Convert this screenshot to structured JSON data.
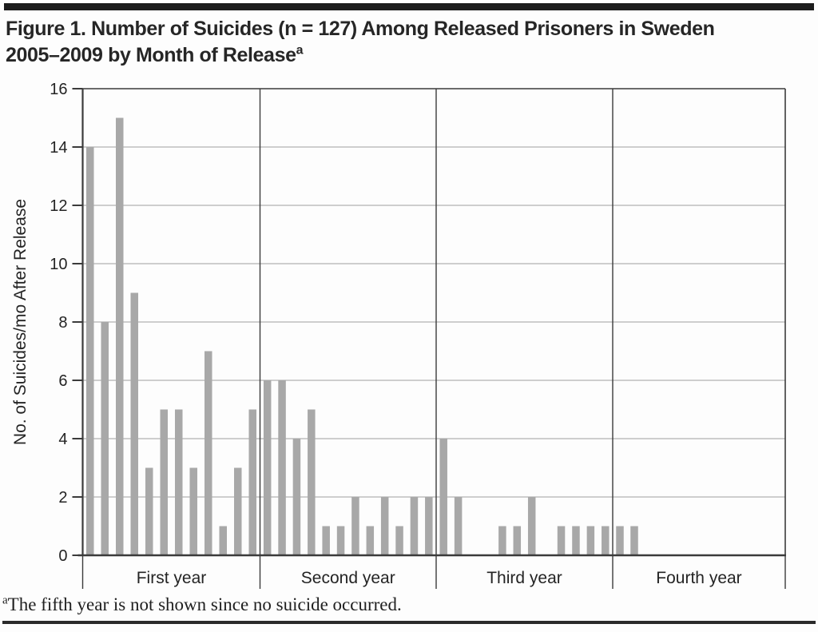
{
  "figure": {
    "title_line1": "Figure 1. Number of Suicides (n = 127) Among Released Prisoners in Sweden",
    "title_line2": "2005–2009 by Month of Release",
    "title_superscript": "a",
    "footnote_superscript": "a",
    "footnote_text": "The fifth year is not shown since no suicide occurred."
  },
  "chart_data": {
    "type": "bar",
    "title": "Figure 1. Number of Suicides (n = 127) Among Released Prisoners in Sweden 2005–2009 by Month of Release",
    "total_n": 127,
    "xlabel": "",
    "ylabel": "No. of Suicides/mo After Release",
    "ylim": [
      0,
      16
    ],
    "ytick_step": 2,
    "yticks": [
      0,
      2,
      4,
      6,
      8,
      10,
      12,
      14,
      16
    ],
    "grid": true,
    "legend": "none",
    "months_per_section": 12,
    "sections": [
      {
        "label": "First year",
        "values": [
          14,
          8,
          15,
          9,
          3,
          5,
          5,
          3,
          7,
          1,
          3,
          5
        ]
      },
      {
        "label": "Second year",
        "values": [
          6,
          6,
          4,
          5,
          1,
          1,
          2,
          1,
          2,
          1,
          2,
          2
        ]
      },
      {
        "label": "Third year",
        "values": [
          4,
          2,
          0,
          0,
          1,
          1,
          2,
          0,
          1,
          1,
          1,
          1
        ]
      },
      {
        "label": "Fourth year",
        "values": [
          1,
          1,
          0,
          0,
          0,
          0,
          0,
          0,
          0,
          0,
          0,
          0
        ]
      }
    ],
    "bar_color": "#a8a8a8",
    "grid_color": "#9e9e9e",
    "axis_color": "#3b3b3b",
    "text_color": "#242424"
  }
}
